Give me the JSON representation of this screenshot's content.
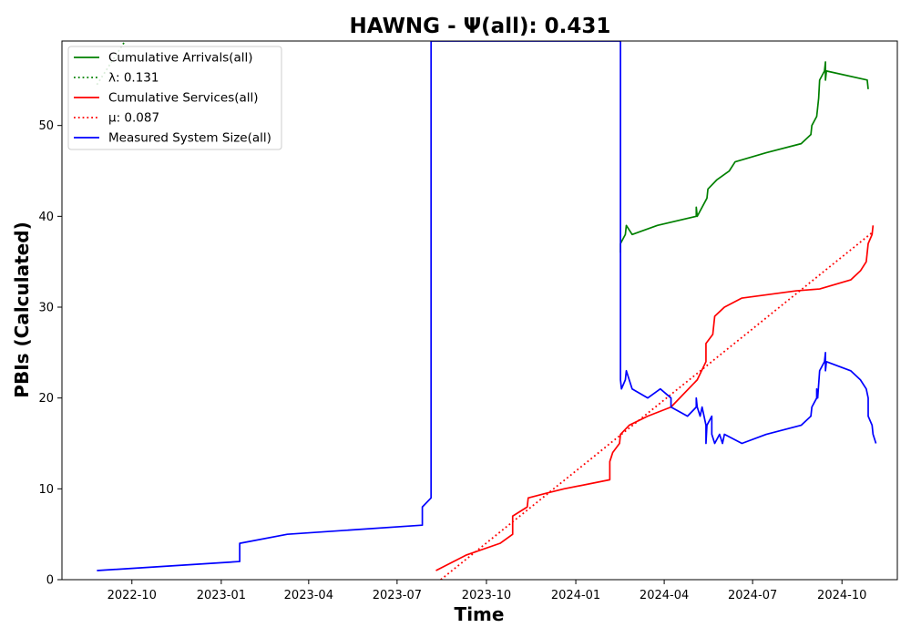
{
  "chart_data": {
    "type": "line",
    "title": "HAWNG -  Ψ(all): 0.431",
    "xlabel": "Time",
    "ylabel": "PBIs (Calculated)",
    "xlim": [
      "2022-07-21",
      "2024-11-27"
    ],
    "ylim": [
      0,
      59.3
    ],
    "x_ticks": [
      "2022-10",
      "2023-01",
      "2023-04",
      "2023-07",
      "2023-10",
      "2024-01",
      "2024-04",
      "2024-07",
      "2024-10"
    ],
    "y_ticks": [
      0,
      10,
      20,
      30,
      40,
      50
    ],
    "grid": false,
    "legend_position": "top-left",
    "series": [
      {
        "name": "Cumulative Arrivals(all)",
        "color": "#008000",
        "style": "solid",
        "points": [
          [
            "2024-02-16",
            36
          ],
          [
            "2024-02-16",
            37
          ],
          [
            "2024-02-21",
            38
          ],
          [
            "2024-02-22",
            39
          ],
          [
            "2024-02-28",
            38
          ],
          [
            "2024-03-25",
            39
          ],
          [
            "2024-05-04",
            40
          ],
          [
            "2024-05-04",
            41
          ],
          [
            "2024-05-05",
            40
          ],
          [
            "2024-05-15",
            42
          ],
          [
            "2024-05-16",
            43
          ],
          [
            "2024-05-25",
            44
          ],
          [
            "2024-06-07",
            45
          ],
          [
            "2024-06-13",
            46
          ],
          [
            "2024-07-15",
            47
          ],
          [
            "2024-08-20",
            48
          ],
          [
            "2024-08-30",
            49
          ],
          [
            "2024-08-31",
            50
          ],
          [
            "2024-09-05",
            51
          ],
          [
            "2024-09-06",
            52
          ],
          [
            "2024-09-07",
            53
          ],
          [
            "2024-09-08",
            55
          ],
          [
            "2024-09-13",
            56
          ],
          [
            "2024-09-14",
            57
          ],
          [
            "2024-09-14",
            55
          ],
          [
            "2024-09-15",
            56
          ],
          [
            "2024-10-27",
            55
          ],
          [
            "2024-10-28",
            54
          ]
        ]
      },
      {
        "name": "λ: 0.131",
        "color": "#008000",
        "style": "dotted",
        "points": [
          [
            "2022-08-26",
            54.5
          ],
          [
            "2022-09-24",
            59.3
          ]
        ]
      },
      {
        "name": "Cumulative Services(all)",
        "color": "#ff0000",
        "style": "solid",
        "points": [
          [
            "2023-08-10",
            1
          ],
          [
            "2023-09-10",
            2.7
          ],
          [
            "2023-10-15",
            4
          ],
          [
            "2023-10-28",
            5
          ],
          [
            "2023-10-28",
            7
          ],
          [
            "2023-11-12",
            8
          ],
          [
            "2023-11-13",
            9
          ],
          [
            "2023-12-01",
            9.5
          ],
          [
            "2023-12-20",
            10
          ],
          [
            "2024-02-05",
            11
          ],
          [
            "2024-02-05",
            13
          ],
          [
            "2024-02-08",
            14
          ],
          [
            "2024-02-15",
            15
          ],
          [
            "2024-02-16",
            16
          ],
          [
            "2024-02-25",
            17
          ],
          [
            "2024-03-15",
            18
          ],
          [
            "2024-04-08",
            19
          ],
          [
            "2024-05-05",
            22
          ],
          [
            "2024-05-14",
            24
          ],
          [
            "2024-05-14",
            26
          ],
          [
            "2024-05-21",
            27
          ],
          [
            "2024-05-23",
            29
          ],
          [
            "2024-06-02",
            30
          ],
          [
            "2024-06-20",
            31
          ],
          [
            "2024-08-15",
            31.8
          ],
          [
            "2024-09-08",
            32
          ],
          [
            "2024-10-10",
            33
          ],
          [
            "2024-10-20",
            34
          ],
          [
            "2024-10-26",
            35
          ],
          [
            "2024-10-28",
            37
          ],
          [
            "2024-11-01",
            38
          ],
          [
            "2024-11-02",
            39
          ]
        ]
      },
      {
        "name": "μ: 0.087",
        "color": "#ff0000",
        "style": "dotted",
        "points": [
          [
            "2023-08-15",
            0
          ],
          [
            "2024-11-01",
            38.2
          ]
        ]
      },
      {
        "name": "Measured System Size(all)",
        "color": "#0000ff",
        "style": "solid",
        "points": [
          [
            "2022-08-26",
            1
          ],
          [
            "2023-01-20",
            2
          ],
          [
            "2023-01-20",
            4
          ],
          [
            "2023-03-10",
            5
          ],
          [
            "2023-07-27",
            6
          ],
          [
            "2023-07-27",
            8
          ],
          [
            "2023-08-05",
            9
          ],
          [
            "2023-08-05",
            59.3
          ],
          [
            "2024-02-16",
            59.3
          ],
          [
            "2024-02-16",
            22
          ],
          [
            "2024-02-17",
            21
          ],
          [
            "2024-02-21",
            22
          ],
          [
            "2024-02-22",
            23
          ],
          [
            "2024-02-28",
            21
          ],
          [
            "2024-03-15",
            20
          ],
          [
            "2024-03-28",
            21
          ],
          [
            "2024-04-08",
            20
          ],
          [
            "2024-04-08",
            19
          ],
          [
            "2024-04-25",
            18
          ],
          [
            "2024-05-04",
            19
          ],
          [
            "2024-05-04",
            20
          ],
          [
            "2024-05-05",
            19
          ],
          [
            "2024-05-08",
            18
          ],
          [
            "2024-05-10",
            19
          ],
          [
            "2024-05-12",
            18
          ],
          [
            "2024-05-14",
            17
          ],
          [
            "2024-05-14",
            15
          ],
          [
            "2024-05-15",
            17
          ],
          [
            "2024-05-20",
            18
          ],
          [
            "2024-05-20",
            16
          ],
          [
            "2024-05-23",
            15
          ],
          [
            "2024-05-28",
            16
          ],
          [
            "2024-05-31",
            15
          ],
          [
            "2024-06-02",
            16
          ],
          [
            "2024-06-20",
            15
          ],
          [
            "2024-07-15",
            16
          ],
          [
            "2024-08-20",
            17
          ],
          [
            "2024-08-30",
            18
          ],
          [
            "2024-08-31",
            19
          ],
          [
            "2024-09-05",
            20
          ],
          [
            "2024-09-05",
            21
          ],
          [
            "2024-09-06",
            20
          ],
          [
            "2024-09-08",
            23
          ],
          [
            "2024-09-13",
            24
          ],
          [
            "2024-09-14",
            25
          ],
          [
            "2024-09-14",
            23
          ],
          [
            "2024-09-15",
            24
          ],
          [
            "2024-10-10",
            23
          ],
          [
            "2024-10-20",
            22
          ],
          [
            "2024-10-26",
            21
          ],
          [
            "2024-10-28",
            20
          ],
          [
            "2024-10-28",
            18
          ],
          [
            "2024-11-01",
            17
          ],
          [
            "2024-11-02",
            16
          ],
          [
            "2024-11-05",
            15
          ]
        ]
      }
    ]
  }
}
